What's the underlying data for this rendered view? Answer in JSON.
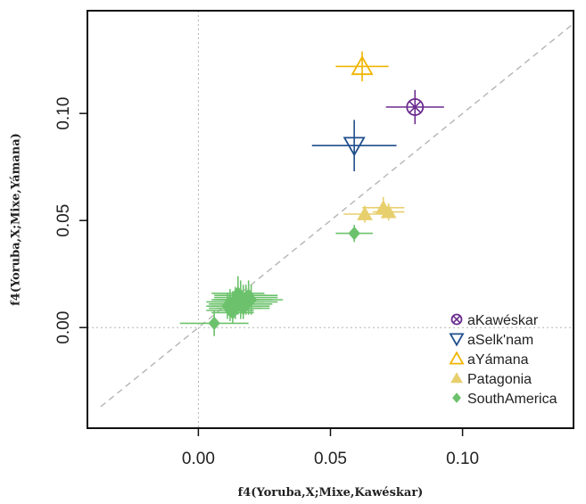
{
  "chart_data": {
    "type": "scatter",
    "xlabel": "f4(Yoruba,X;Mixe,Kawéskar)",
    "ylabel": "f4(Yoruba,X;Mixe,Yámana)",
    "xlim": [
      -0.042,
      0.142
    ],
    "ylim": [
      -0.047,
      0.148
    ],
    "x_ticks": [
      0.0,
      0.05,
      0.1
    ],
    "x_tick_labels": [
      "0.00",
      "0.05",
      "0.10"
    ],
    "y_ticks": [
      0.0,
      0.05,
      0.1
    ],
    "y_tick_labels": [
      "0.00",
      "0.05",
      "0.10"
    ],
    "reference_lines": {
      "vertical_at_x": 0,
      "horizontal_at_y": 0,
      "diagonal": "y = x"
    },
    "legend_position": "bottom-right",
    "colors": {
      "aKaweskar": "#6b2c8f",
      "aSelknam": "#1f4e8c",
      "aYamana": "#f0b400",
      "Patagonia": "#e8cf6e",
      "SouthAmerica": "#6cc26c",
      "reference": "#b5b5b5"
    },
    "series": [
      {
        "name": "aKawéskar",
        "marker": "circle-x",
        "color_key": "aKaweskar",
        "points": [
          {
            "x": 0.082,
            "y": 0.103,
            "xerr": 0.011,
            "yerr": 0.008
          }
        ]
      },
      {
        "name": "aSelk'nam",
        "marker": "triangle-down-open",
        "color_key": "aSelknam",
        "points": [
          {
            "x": 0.059,
            "y": 0.085,
            "xerr": 0.016,
            "yerr": 0.012
          }
        ]
      },
      {
        "name": "aYámana",
        "marker": "triangle-up-open",
        "color_key": "aYamana",
        "points": [
          {
            "x": 0.062,
            "y": 0.122,
            "xerr": 0.01,
            "yerr": 0.007
          }
        ]
      },
      {
        "name": "Patagonia",
        "marker": "triangle-up-filled",
        "color_key": "Patagonia",
        "points": [
          {
            "x": 0.063,
            "y": 0.053,
            "xerr": 0.008,
            "yerr": 0.004
          },
          {
            "x": 0.07,
            "y": 0.056,
            "xerr": 0.008,
            "yerr": 0.005
          },
          {
            "x": 0.072,
            "y": 0.054,
            "xerr": 0.006,
            "yerr": 0.004
          }
        ]
      },
      {
        "name": "SouthAmerica",
        "marker": "diamond-filled",
        "color_key": "SouthAmerica",
        "points": [
          {
            "x": 0.006,
            "y": 0.002,
            "xerr": 0.013,
            "yerr": 0.006
          },
          {
            "x": 0.059,
            "y": 0.044,
            "xerr": 0.007,
            "yerr": 0.004
          },
          {
            "x": 0.012,
            "y": 0.008,
            "xerr": 0.009,
            "yerr": 0.005
          },
          {
            "x": 0.013,
            "y": 0.011,
            "xerr": 0.009,
            "yerr": 0.006
          },
          {
            "x": 0.014,
            "y": 0.009,
            "xerr": 0.01,
            "yerr": 0.005
          },
          {
            "x": 0.015,
            "y": 0.012,
            "xerr": 0.01,
            "yerr": 0.006
          },
          {
            "x": 0.016,
            "y": 0.01,
            "xerr": 0.011,
            "yerr": 0.006
          },
          {
            "x": 0.017,
            "y": 0.013,
            "xerr": 0.011,
            "yerr": 0.007
          },
          {
            "x": 0.018,
            "y": 0.014,
            "xerr": 0.012,
            "yerr": 0.006
          },
          {
            "x": 0.019,
            "y": 0.012,
            "xerr": 0.011,
            "yerr": 0.006
          },
          {
            "x": 0.02,
            "y": 0.013,
            "xerr": 0.012,
            "yerr": 0.007
          },
          {
            "x": 0.016,
            "y": 0.015,
            "xerr": 0.01,
            "yerr": 0.007
          },
          {
            "x": 0.014,
            "y": 0.013,
            "xerr": 0.009,
            "yerr": 0.006
          },
          {
            "x": 0.011,
            "y": 0.01,
            "xerr": 0.008,
            "yerr": 0.006
          },
          {
            "x": 0.018,
            "y": 0.011,
            "xerr": 0.01,
            "yerr": 0.005
          },
          {
            "x": 0.012,
            "y": 0.012,
            "xerr": 0.009,
            "yerr": 0.006
          },
          {
            "x": 0.017,
            "y": 0.009,
            "xerr": 0.01,
            "yerr": 0.005
          },
          {
            "x": 0.013,
            "y": 0.007,
            "xerr": 0.008,
            "yerr": 0.005
          },
          {
            "x": 0.019,
            "y": 0.015,
            "xerr": 0.011,
            "yerr": 0.007
          },
          {
            "x": 0.015,
            "y": 0.016,
            "xerr": 0.01,
            "yerr": 0.008
          }
        ]
      }
    ]
  }
}
